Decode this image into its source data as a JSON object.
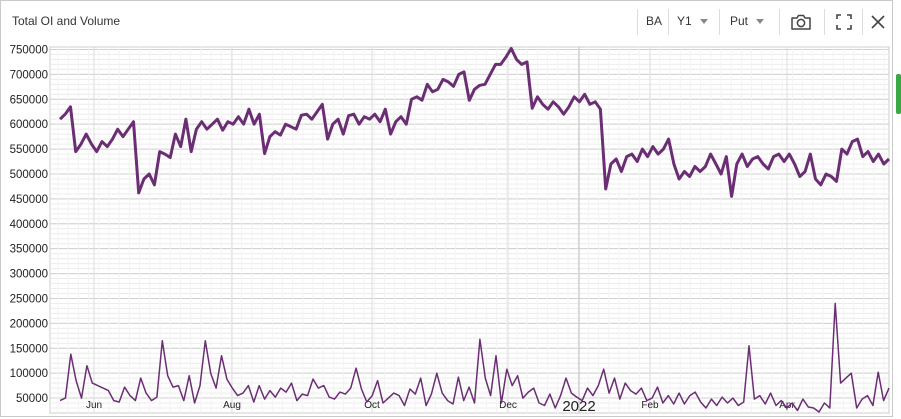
{
  "window": {
    "title": "Total OI and Volume",
    "symbol": "BA",
    "period": "Y1",
    "option_type": "Put",
    "icons": [
      "camera-icon",
      "fullscreen-icon",
      "close-icon"
    ]
  },
  "chart_data": {
    "type": "line",
    "title": "Total OI and Volume",
    "x_tick_labels": [
      "Jun",
      "Aug",
      "Oct",
      "Dec",
      "2022",
      "Feb",
      "Apr"
    ],
    "y_tick_labels": [
      "50000",
      "100000",
      "150000",
      "200000",
      "250000",
      "300000",
      "350000",
      "400000",
      "450000",
      "500000",
      "550000",
      "600000",
      "650000",
      "700000",
      "750000"
    ],
    "ylim": [
      20000,
      755000
    ],
    "grid": true,
    "series_color": "#6b2e74",
    "series": [
      {
        "values": [
          610000,
          620000,
          635000,
          545000,
          560000,
          580000,
          560000,
          545000,
          565000,
          555000,
          570000,
          590000,
          575000,
          590000,
          605000,
          462000,
          490000,
          500000,
          478000,
          545000,
          540000,
          533000,
          580000,
          555000,
          610000,
          545000,
          590000,
          605000,
          590000,
          600000,
          610000,
          588000,
          605000,
          600000,
          615000,
          600000,
          630000,
          600000,
          620000,
          541000,
          575000,
          585000,
          578000,
          600000,
          595000,
          590000,
          618000,
          620000,
          610000,
          625000,
          640000,
          570000,
          600000,
          610000,
          580000,
          617000,
          620000,
          600000,
          615000,
          610000,
          620000,
          605000,
          630000,
          580000,
          605000,
          615000,
          600000,
          650000,
          655000,
          648000,
          680000,
          665000,
          670000,
          690000,
          685000,
          676000,
          700000,
          705000,
          648000,
          670000,
          678000,
          680000,
          700000,
          720000,
          720000,
          735000,
          752000,
          730000,
          720000,
          725000,
          632000,
          655000,
          640000,
          630000,
          645000,
          635000,
          620000,
          635000,
          655000,
          645000,
          660000,
          640000,
          645000,
          630000,
          470000,
          520000,
          530000,
          505000,
          535000,
          540000,
          525000,
          550000,
          535000,
          555000,
          540000,
          550000,
          570000,
          520000,
          490000,
          505000,
          495000,
          515000,
          505000,
          515000,
          540000,
          520000,
          500000,
          535000,
          455000,
          520000,
          540000,
          515000,
          530000,
          535000,
          520000,
          510000,
          535000,
          540000,
          525000,
          540000,
          520000,
          495000,
          505000,
          540000,
          490000,
          478000,
          500000,
          495000,
          485000,
          550000,
          540000,
          565000,
          570000,
          535000,
          545000,
          525000,
          540000,
          520000,
          530000
        ]
      },
      {
        "values": [
          45000,
          50000,
          138000,
          85000,
          50000,
          115000,
          80000,
          75000,
          70000,
          65000,
          45000,
          42000,
          72000,
          55000,
          45000,
          90000,
          60000,
          45000,
          52000,
          165000,
          95000,
          72000,
          75000,
          45000,
          95000,
          40000,
          75000,
          165000,
          100000,
          70000,
          135000,
          88000,
          70000,
          55000,
          60000,
          75000,
          42000,
          75000,
          48000,
          65000,
          52000,
          70000,
          62000,
          80000,
          45000,
          58000,
          55000,
          88000,
          70000,
          75000,
          52000,
          48000,
          62000,
          58000,
          70000,
          110000,
          68000,
          42000,
          55000,
          85000,
          40000,
          50000,
          60000,
          55000,
          35000,
          68000,
          58000,
          90000,
          35000,
          58000,
          100000,
          60000,
          45000,
          38000,
          92000,
          45000,
          72000,
          40000,
          168000,
          90000,
          55000,
          135000,
          40000,
          108000,
          75000,
          95000,
          50000,
          62000,
          70000,
          40000,
          35000,
          58000,
          30000,
          55000,
          90000,
          60000,
          52000,
          45000,
          70000,
          55000,
          75000,
          108000,
          60000,
          90000,
          48000,
          80000,
          65000,
          58000,
          70000,
          45000,
          50000,
          72000,
          40000,
          55000,
          38000,
          60000,
          38000,
          55000,
          62000,
          42000,
          30000,
          48000,
          35000,
          52000,
          40000,
          50000,
          35000,
          42000,
          155000,
          48000,
          55000,
          38000,
          60000,
          35000,
          45000,
          30000,
          40000,
          25000,
          48000,
          32000,
          30000,
          22000,
          40000,
          30000,
          240000,
          80000,
          90000,
          100000,
          30000,
          48000,
          55000,
          35000,
          102000,
          45000,
          70000
        ]
      }
    ]
  }
}
